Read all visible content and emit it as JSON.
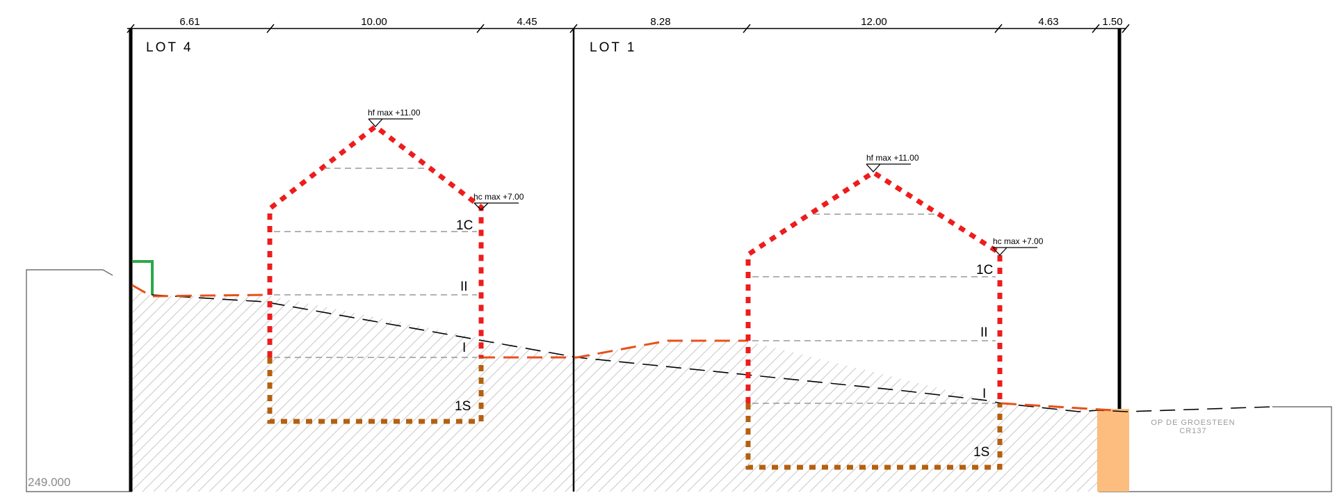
{
  "dimensions": [
    "6.61",
    "10.00",
    "4.45",
    "8.28",
    "12.00",
    "4.63",
    "1.50"
  ],
  "lots": {
    "left": "LOT 4",
    "right": "LOT 1"
  },
  "heights": {
    "ridge_label": "hf max +11.00",
    "eave_label": "hc max +7.00"
  },
  "levels": {
    "attic": "1C",
    "second": "II",
    "first": "I",
    "basement": "1S"
  },
  "road": {
    "name": "OP DE GROESTEEN",
    "code": "CR137"
  },
  "reference_elevation": "249.000",
  "colors": {
    "building_above": "#ee1c1c",
    "building_below": "#b5600f",
    "terrain_new": "#e8501a",
    "terrain_existing": "#000000",
    "hatch": "#c8c8c8",
    "road_strip": "#fdbd7e",
    "marker": "#2ca84a"
  }
}
